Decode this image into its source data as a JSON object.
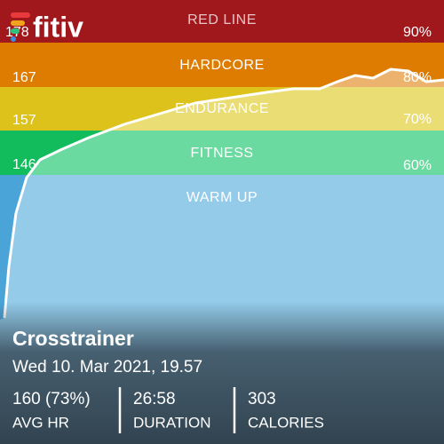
{
  "app": {
    "logo": "fitiv"
  },
  "zones": [
    {
      "name": "RED LINE",
      "bpm": "178",
      "percent": "90%"
    },
    {
      "name": "HARDCORE",
      "bpm": "167",
      "percent": "80%"
    },
    {
      "name": "ENDURANCE",
      "bpm": "157",
      "percent": "70%"
    },
    {
      "name": "FITNESS",
      "bpm": "146",
      "percent": "60%"
    },
    {
      "name": "WARM UP"
    }
  ],
  "workout": {
    "title": "Crosstrainer",
    "date": "Wed 10. Mar 2021, 19.57",
    "stats": [
      {
        "value": "160 (73%)",
        "label": "AVG HR"
      },
      {
        "value": "26:58",
        "label": "DURATION"
      },
      {
        "value": "303",
        "label": "CALORIES"
      }
    ]
  }
}
